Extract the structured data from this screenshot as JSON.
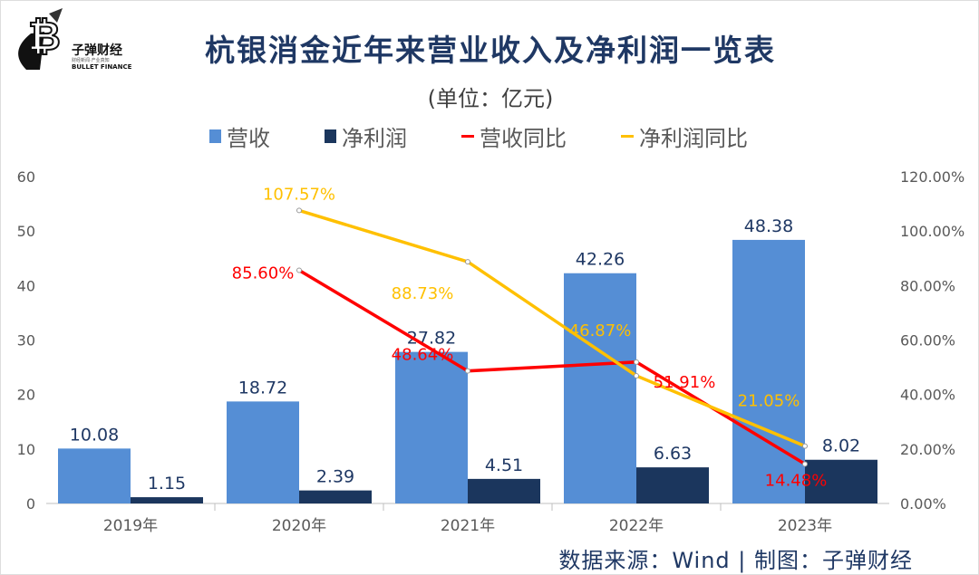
{
  "logo": {
    "name": "子弹财经",
    "slogan": "财经新闻·产业真知",
    "english": "BULLET FINANCE"
  },
  "title": "杭银消金近年来营业收入及净利润一览表",
  "unit": "(单位：亿元)",
  "source": "数据来源：Wind  |  制图：子弹财经",
  "colors": {
    "revenue": "#558ed5",
    "profit": "#1b365d",
    "revenue_yoy": "#ff0000",
    "profit_yoy": "#ffc000"
  },
  "chart_data": {
    "type": "bar+line",
    "categories": [
      "2019年",
      "2020年",
      "2021年",
      "2022年",
      "2023年"
    ],
    "series": [
      {
        "name": "营收",
        "type": "bar",
        "axis": "left",
        "values": [
          10.08,
          18.72,
          27.82,
          42.26,
          48.38
        ],
        "labels": [
          "10.08",
          "18.72",
          "27.82",
          "42.26",
          "48.38"
        ]
      },
      {
        "name": "净利润",
        "type": "bar",
        "axis": "left",
        "values": [
          1.15,
          2.39,
          4.51,
          6.63,
          8.02
        ],
        "labels": [
          "1.15",
          "2.39",
          "4.51",
          "6.63",
          "8.02"
        ]
      },
      {
        "name": "营收同比",
        "type": "line",
        "axis": "right",
        "values": [
          null,
          85.6,
          48.64,
          51.91,
          14.48
        ],
        "labels": [
          "",
          "85.60%",
          "48.64%",
          "51.91%",
          "14.48%"
        ]
      },
      {
        "name": "净利润同比",
        "type": "line",
        "axis": "right",
        "values": [
          null,
          107.57,
          88.73,
          46.87,
          21.05
        ],
        "labels": [
          "",
          "107.57%",
          "88.73%",
          "46.87%",
          "21.05%"
        ]
      }
    ],
    "left_ticks": [
      "0",
      "10",
      "20",
      "30",
      "40",
      "50",
      "60"
    ],
    "right_ticks": [
      "0.00%",
      "20.00%",
      "40.00%",
      "60.00%",
      "80.00%",
      "100.00%",
      "120.00%"
    ],
    "ylim": [
      0,
      60
    ],
    "y2lim": [
      0,
      120
    ],
    "legend": "top",
    "grid": false
  }
}
